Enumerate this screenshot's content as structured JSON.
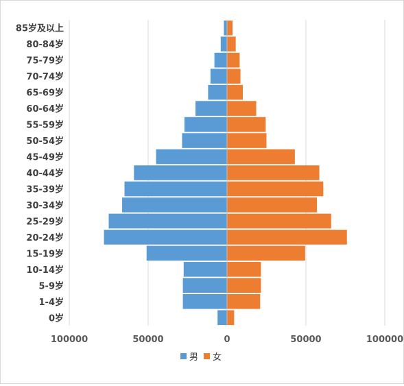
{
  "chart_data": {
    "type": "bar",
    "orientation": "horizontal",
    "subtype": "population-pyramid",
    "title": "",
    "xlabel": "",
    "ylabel": "",
    "categories": [
      "0岁",
      "1-4岁",
      "5-9岁",
      "10-14岁",
      "15-19岁",
      "20-24岁",
      "25-29岁",
      "30-34岁",
      "35-39岁",
      "40-44岁",
      "45-49岁",
      "50-54岁",
      "55-59岁",
      "60-64岁",
      "65-69岁",
      "70-74岁",
      "75-79岁",
      "80-84岁",
      "85岁及以上"
    ],
    "series": [
      {
        "name": "男",
        "color": "#5b9bd5",
        "side": "left",
        "values": [
          6000,
          28000,
          28000,
          27500,
          51000,
          78000,
          75000,
          66500,
          65000,
          59000,
          45000,
          28500,
          27000,
          20000,
          12000,
          10500,
          8000,
          4000,
          2000
        ]
      },
      {
        "name": "女",
        "color": "#ed7d31",
        "side": "right",
        "values": [
          4500,
          21000,
          21500,
          21500,
          49500,
          76000,
          66000,
          57000,
          61000,
          58500,
          43000,
          25000,
          24500,
          18500,
          10000,
          8500,
          8000,
          5500,
          3500
        ]
      }
    ],
    "xlim": [
      -100000,
      100000
    ],
    "xticks": [
      "100000",
      "50000",
      "0",
      "50000",
      "100000"
    ],
    "xtick_values": [
      -100000,
      -50000,
      0,
      50000,
      100000
    ],
    "grid": true,
    "legend_position": "bottom"
  }
}
